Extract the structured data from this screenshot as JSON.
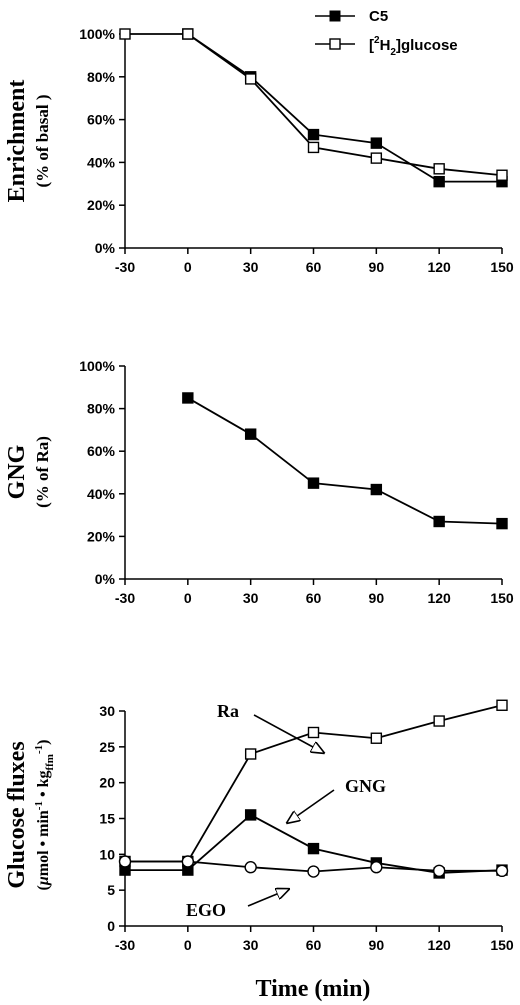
{
  "chart_data": [
    {
      "type": "line",
      "ylabel": "Enrichment",
      "ylabel_sub": "(% of basal )",
      "x": [
        -30,
        0,
        30,
        60,
        90,
        120,
        150
      ],
      "xticks": [
        "-30",
        "0",
        "30",
        "60",
        "90",
        "120",
        "150"
      ],
      "ylim": [
        0,
        100
      ],
      "yticks": [
        "0%",
        "20%",
        "40%",
        "60%",
        "80%",
        "100%"
      ],
      "legend_position": "top-right",
      "series": [
        {
          "name": "C5",
          "marker": "filled-square",
          "x": [
            0,
            30,
            60,
            90,
            120,
            150
          ],
          "values": [
            100,
            80,
            53,
            49,
            31,
            31
          ]
        },
        {
          "name": "[2H2]glucose",
          "marker": "open-square",
          "x": [
            -30,
            0,
            30,
            60,
            90,
            120,
            150
          ],
          "values": [
            100,
            100,
            79,
            47,
            42,
            37,
            34
          ]
        }
      ]
    },
    {
      "type": "line",
      "ylabel": "GNG",
      "ylabel_sub": "(% of Ra)",
      "x": [
        -30,
        0,
        30,
        60,
        90,
        120,
        150
      ],
      "xticks": [
        "-30",
        "0",
        "30",
        "60",
        "90",
        "120",
        "150"
      ],
      "ylim": [
        0,
        100
      ],
      "yticks": [
        "0%",
        "20%",
        "40%",
        "60%",
        "80%",
        "100%"
      ],
      "series": [
        {
          "marker": "filled-square",
          "x": [
            0,
            30,
            60,
            90,
            120,
            150
          ],
          "values": [
            85,
            68,
            45,
            42,
            27,
            26
          ]
        }
      ]
    },
    {
      "type": "line",
      "ylabel": "Glucose fluxes",
      "ylabel_sub": "(μmol • min⁻¹ • kg_ffm⁻¹)",
      "xlabel": "Time (min)",
      "x": [
        -30,
        0,
        30,
        60,
        90,
        120,
        150
      ],
      "xticks": [
        "-30",
        "0",
        "30",
        "60",
        "90",
        "120",
        "150"
      ],
      "ylim": [
        0,
        30
      ],
      "yticks": [
        "0",
        "5",
        "10",
        "15",
        "20",
        "25",
        "30"
      ],
      "series": [
        {
          "name": "Ra",
          "marker": "open-square",
          "values": [
            9,
            9,
            24,
            27,
            26.2,
            28.6,
            30.8
          ]
        },
        {
          "name": "GNG",
          "marker": "filled-square",
          "values": [
            7.8,
            7.8,
            15.5,
            10.8,
            8.8,
            7.4,
            7.8
          ]
        },
        {
          "name": "EGO",
          "marker": "open-circle",
          "values": [
            9,
            9,
            8.2,
            7.6,
            8.2,
            7.7,
            7.7
          ]
        }
      ],
      "annotations": [
        "Ra",
        "GNG",
        "EGO"
      ]
    }
  ]
}
